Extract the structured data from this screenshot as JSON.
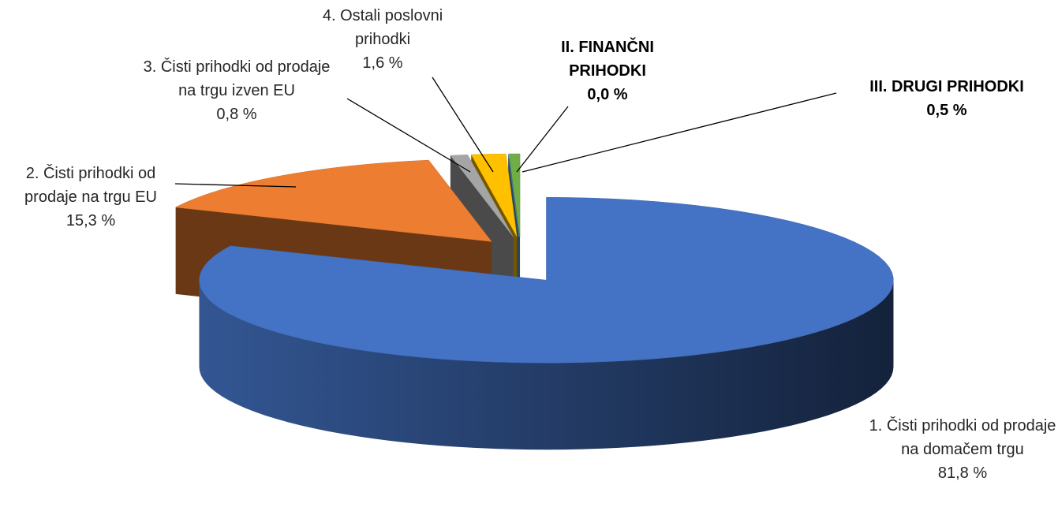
{
  "chart_data": {
    "type": "pie3d",
    "categories": [
      "1. Čisti prihodki od prodaje na domačem trgu",
      "2. Čisti prihodki od prodaje na trgu EU",
      "3. Čisti prihodki od prodaje na trgu izven EU",
      "4. Ostali poslovni prihodki",
      "II. FINANČNI PRIHODKI",
      "III. DRUGI PRIHODKI"
    ],
    "values": [
      81.8,
      15.3,
      0.8,
      1.6,
      0.0,
      0.5
    ],
    "value_labels": [
      "81,8 %",
      "15,3 %",
      "0,8 %",
      "1,6 %",
      "0,0 %",
      "0,5 %"
    ],
    "colors": [
      "#4472c4",
      "#ed7d31",
      "#a5a5a5",
      "#ffc000",
      "#5b9bd5",
      "#70ad47"
    ]
  }
}
